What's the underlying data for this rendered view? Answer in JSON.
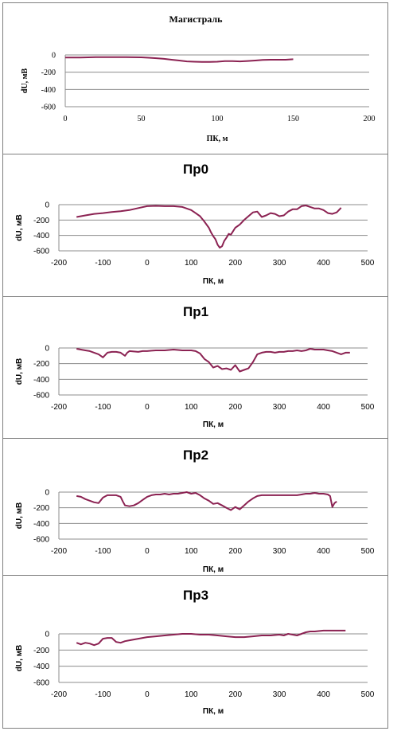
{
  "line_color": "#8B2252",
  "grid_color": "#8c8c8c",
  "chart_data": [
    {
      "type": "line",
      "title": "Магистраль",
      "xlabel": "ПК, м",
      "ylabel": "dU, мВ",
      "xlim": [
        0,
        200
      ],
      "ylim": [
        -600,
        0
      ],
      "xticks": [
        0,
        50,
        100,
        150,
        200
      ],
      "yticks": [
        0,
        -200,
        -400,
        -600
      ],
      "tick_labels_x": [
        "0",
        "50",
        "100",
        "150",
        "200"
      ],
      "tick_labels_y": [
        "0",
        "-200",
        "-400",
        "-600"
      ],
      "grid": true,
      "series": [
        {
          "x": [
            0,
            10,
            20,
            30,
            40,
            50,
            55,
            60,
            65,
            70,
            75,
            80,
            85,
            90,
            95,
            100,
            105,
            110,
            115,
            120,
            125,
            130,
            135,
            140,
            145,
            150
          ],
          "y": [
            -30,
            -30,
            -25,
            -25,
            -25,
            -28,
            -32,
            -38,
            -45,
            -55,
            -65,
            -75,
            -78,
            -80,
            -80,
            -78,
            -72,
            -72,
            -75,
            -70,
            -65,
            -58,
            -55,
            -55,
            -55,
            -50
          ]
        }
      ]
    },
    {
      "type": "line",
      "title": "Пр0",
      "xlabel": "ПК, м",
      "ylabel": "dU, мВ",
      "xlim": [
        -200,
        500
      ],
      "ylim": [
        -600,
        0
      ],
      "xticks": [
        -200,
        -100,
        0,
        100,
        200,
        300,
        400,
        500
      ],
      "yticks": [
        0,
        -200,
        -400,
        -600
      ],
      "tick_labels_x": [
        "-200",
        "-100",
        "0",
        "100",
        "200",
        "300",
        "400",
        "500"
      ],
      "tick_labels_y": [
        "0",
        "-200",
        "-400",
        "-600"
      ],
      "grid": true,
      "series": [
        {
          "x": [
            -160,
            -140,
            -120,
            -100,
            -80,
            -60,
            -40,
            -20,
            0,
            20,
            40,
            60,
            80,
            100,
            110,
            120,
            130,
            140,
            145,
            150,
            155,
            160,
            165,
            170,
            175,
            180,
            185,
            190,
            200,
            210,
            220,
            230,
            240,
            250,
            260,
            270,
            280,
            290,
            300,
            310,
            320,
            330,
            340,
            350,
            360,
            370,
            380,
            390,
            400,
            410,
            420,
            430,
            440
          ],
          "y": [
            -160,
            -140,
            -120,
            -110,
            -95,
            -85,
            -70,
            -45,
            -20,
            -15,
            -20,
            -20,
            -30,
            -70,
            -110,
            -150,
            -220,
            -300,
            -360,
            -410,
            -450,
            -520,
            -560,
            -540,
            -470,
            -430,
            -380,
            -390,
            -300,
            -260,
            -200,
            -150,
            -100,
            -90,
            -160,
            -140,
            -110,
            -120,
            -150,
            -140,
            -90,
            -60,
            -60,
            -20,
            -10,
            -30,
            -50,
            -50,
            -70,
            -110,
            -120,
            -100,
            -40
          ]
        }
      ]
    },
    {
      "type": "line",
      "title": "Пр1",
      "xlabel": "ПК, м",
      "ylabel": "dU, мВ",
      "xlim": [
        -200,
        500
      ],
      "ylim": [
        -600,
        0
      ],
      "xticks": [
        -200,
        -100,
        0,
        100,
        200,
        300,
        400,
        500
      ],
      "yticks": [
        0,
        -200,
        -400,
        -600
      ],
      "tick_labels_x": [
        "-200",
        "-100",
        "0",
        "100",
        "200",
        "300",
        "400",
        "500"
      ],
      "tick_labels_y": [
        "0",
        "-200",
        "-400",
        "-600"
      ],
      "grid": true,
      "series": [
        {
          "x": [
            -160,
            -150,
            -140,
            -130,
            -120,
            -110,
            -100,
            -90,
            -80,
            -70,
            -60,
            -55,
            -50,
            -45,
            -40,
            -30,
            -20,
            -10,
            0,
            10,
            20,
            30,
            40,
            50,
            60,
            70,
            80,
            90,
            100,
            110,
            120,
            130,
            140,
            150,
            160,
            170,
            180,
            190,
            200,
            210,
            220,
            230,
            240,
            250,
            260,
            270,
            280,
            290,
            300,
            310,
            320,
            330,
            340,
            350,
            360,
            370,
            380,
            390,
            400,
            410,
            420,
            430,
            440,
            450,
            460
          ],
          "y": [
            -10,
            -20,
            -30,
            -40,
            -60,
            -80,
            -120,
            -60,
            -50,
            -50,
            -60,
            -80,
            -100,
            -60,
            -40,
            -45,
            -50,
            -40,
            -40,
            -35,
            -30,
            -30,
            -30,
            -25,
            -20,
            -25,
            -30,
            -30,
            -30,
            -40,
            -70,
            -140,
            -180,
            -250,
            -230,
            -270,
            -260,
            -280,
            -220,
            -300,
            -280,
            -260,
            -180,
            -80,
            -60,
            -50,
            -50,
            -60,
            -50,
            -50,
            -40,
            -40,
            -30,
            -40,
            -30,
            -10,
            -20,
            -20,
            -20,
            -30,
            -40,
            -60,
            -80,
            -60,
            -60
          ]
        }
      ]
    },
    {
      "type": "line",
      "title": "Пр2",
      "xlabel": "ПК, м",
      "ylabel": "dU, мВ",
      "xlim": [
        -200,
        500
      ],
      "ylim": [
        -600,
        0
      ],
      "xticks": [
        -200,
        -100,
        0,
        100,
        200,
        300,
        400,
        500
      ],
      "yticks": [
        0,
        -200,
        -400,
        -600
      ],
      "tick_labels_x": [
        "-200",
        "-100",
        "0",
        "100",
        "200",
        "300",
        "400",
        "500"
      ],
      "tick_labels_y": [
        "0",
        "-200",
        "-400",
        "-600"
      ],
      "grid": true,
      "series": [
        {
          "x": [
            -160,
            -150,
            -140,
            -130,
            -120,
            -110,
            -100,
            -90,
            -80,
            -70,
            -60,
            -55,
            -50,
            -40,
            -30,
            -20,
            -10,
            0,
            10,
            20,
            30,
            40,
            50,
            60,
            70,
            80,
            90,
            100,
            110,
            120,
            130,
            140,
            150,
            160,
            170,
            180,
            190,
            200,
            210,
            220,
            230,
            240,
            250,
            260,
            270,
            280,
            290,
            300,
            310,
            320,
            330,
            340,
            350,
            360,
            370,
            380,
            390,
            400,
            410,
            415,
            420,
            425,
            430
          ],
          "y": [
            -50,
            -60,
            -90,
            -110,
            -130,
            -140,
            -70,
            -40,
            -40,
            -40,
            -60,
            -120,
            -170,
            -180,
            -170,
            -140,
            -100,
            -60,
            -40,
            -30,
            -30,
            -20,
            -30,
            -20,
            -20,
            -10,
            0,
            -20,
            -10,
            -40,
            -80,
            -110,
            -150,
            -140,
            -170,
            -200,
            -230,
            -190,
            -220,
            -170,
            -120,
            -80,
            -50,
            -40,
            -40,
            -40,
            -40,
            -40,
            -40,
            -40,
            -40,
            -40,
            -30,
            -20,
            -20,
            -10,
            -20,
            -20,
            -30,
            -50,
            -190,
            -140,
            -120
          ]
        }
      ]
    },
    {
      "type": "line",
      "title": "Пр3",
      "xlabel": "ПК, м",
      "ylabel": "dU, мВ",
      "xlim": [
        -200,
        500
      ],
      "ylim": [
        -600,
        0
      ],
      "xticks": [
        -200,
        -100,
        0,
        100,
        200,
        300,
        400,
        500
      ],
      "yticks": [
        0,
        -200,
        -400,
        -600
      ],
      "tick_labels_x": [
        "-200",
        "-100",
        "0",
        "100",
        "200",
        "300",
        "400",
        "500"
      ],
      "tick_labels_y": [
        "0",
        "-200",
        "-400",
        "-600"
      ],
      "grid": true,
      "series": [
        {
          "x": [
            -160,
            -150,
            -140,
            -130,
            -120,
            -110,
            -100,
            -90,
            -80,
            -70,
            -60,
            -50,
            -40,
            -30,
            -20,
            -10,
            0,
            20,
            40,
            60,
            80,
            100,
            120,
            140,
            160,
            180,
            200,
            220,
            240,
            260,
            280,
            300,
            310,
            320,
            330,
            340,
            350,
            360,
            370,
            380,
            400,
            420,
            440,
            450
          ],
          "y": [
            -110,
            -130,
            -110,
            -120,
            -140,
            -120,
            -60,
            -50,
            -50,
            -100,
            -110,
            -90,
            -80,
            -70,
            -60,
            -50,
            -40,
            -30,
            -20,
            -10,
            0,
            0,
            -10,
            -10,
            -20,
            -30,
            -40,
            -40,
            -30,
            -20,
            -20,
            -10,
            -20,
            0,
            -10,
            -20,
            0,
            20,
            30,
            30,
            40,
            40,
            40,
            40
          ]
        }
      ]
    }
  ]
}
